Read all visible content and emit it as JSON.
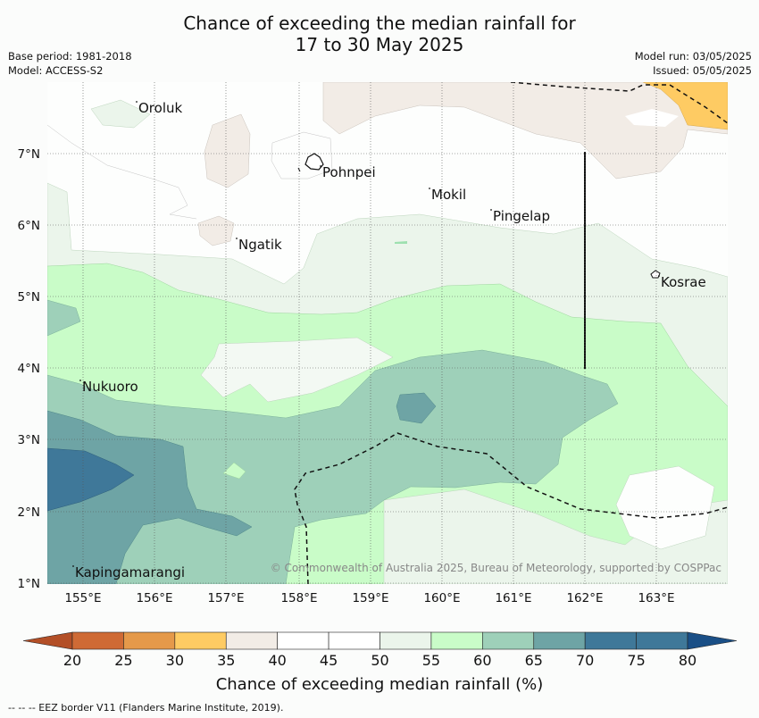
{
  "title_line1": "Chance of exceeding the median rainfall for",
  "title_line2": "17 to 30 May 2025",
  "base_period": "Base period: 1981-2018",
  "model": "Model: ACCESS-S2",
  "model_run": "Model run: 03/05/2025",
  "issued": "Issued: 05/05/2025",
  "copyright": "© Commonwealth of Australia 2025, Bureau of Meteorology, supported by COSPPac",
  "lon_labels": [
    "155°E",
    "156°E",
    "157°E",
    "158°E",
    "159°E",
    "160°E",
    "161°E",
    "162°E",
    "163°E"
  ],
  "lat_labels": [
    "7°N",
    "6°N",
    "5°N",
    "4°N",
    "3°N",
    "2°N",
    "1°N"
  ],
  "places": [
    {
      "name": "Oroluk"
    },
    {
      "name": "Pohnpei"
    },
    {
      "name": "Mokil"
    },
    {
      "name": "Pingelap"
    },
    {
      "name": "Ngatik"
    },
    {
      "name": "Kosrae"
    },
    {
      "name": "Nukuoro"
    },
    {
      "name": "Kapingamarangi"
    }
  ],
  "colorbar": {
    "ticks": [
      "20",
      "25",
      "30",
      "35",
      "40",
      "45",
      "50",
      "55",
      "60",
      "65",
      "70",
      "75",
      "80"
    ],
    "colors": [
      "#b34f27",
      "#cf6a35",
      "#e5994a",
      "#fecb63",
      "#f2ece6",
      "#ffffff",
      "#ffffff",
      "#ebf5eb",
      "#c9fcc8",
      "#9ed0b9",
      "#6ea4a5",
      "#3f7899",
      "#1a4f86"
    ],
    "title": "Chance of exceeding median rainfall (%)"
  },
  "footnote": "--  --  -- EEZ border V11 (Flanders Marine Institute, 2019)."
}
